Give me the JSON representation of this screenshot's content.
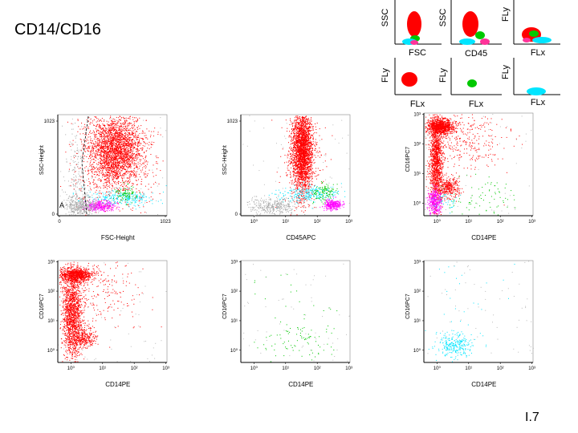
{
  "slide": {
    "title": "CD14/CD16",
    "number": "I.7"
  },
  "thumbnails": {
    "labels": [
      "SSC",
      "SSC",
      "FLy",
      "FSC",
      "CD45",
      "FLx",
      "FLy",
      "FLy",
      "FLy",
      "FLx",
      "FLx",
      "FLx"
    ]
  },
  "colors": {
    "lymph_gate": "#ff0000",
    "mono_gate": "#00e5ff",
    "granulocyte_gate": "#00c800",
    "debris_gate": "#ff00ff",
    "ungated": "#aaaaaa"
  },
  "chart_data": [
    {
      "type": "scatter",
      "panel": "p1",
      "xlabel": "FSC-Height",
      "ylabel": "SSC-Height",
      "x_ticks": [
        "0",
        "1023"
      ],
      "y_ticks": [
        "0",
        "1023"
      ],
      "gate_label": "A"
    },
    {
      "type": "scatter",
      "panel": "p2",
      "xlabel": "CD45APC",
      "ylabel": "SSC-Height",
      "x_ticks": [
        "10⁰",
        "10¹",
        "10²",
        "10³"
      ],
      "y_ticks": [
        "0",
        "1023"
      ]
    },
    {
      "type": "scatter",
      "panel": "p3",
      "xlabel": "CD14PE",
      "ylabel": "CD16PC7",
      "x_ticks": [
        "10⁰",
        "10¹",
        "10²",
        "10³"
      ],
      "y_ticks": [
        "10⁰",
        "10¹",
        "10²",
        "10³"
      ]
    },
    {
      "type": "scatter",
      "panel": "p4",
      "xlabel": "CD14PE",
      "ylabel": "CD16PC7",
      "x_ticks": [
        "10⁰",
        "10¹",
        "10²",
        "10³"
      ],
      "y_ticks": [
        "10⁰",
        "10¹",
        "10²",
        "10³"
      ]
    },
    {
      "type": "scatter",
      "panel": "p5",
      "xlabel": "CD14PE",
      "ylabel": "CD16PC7",
      "x_ticks": [
        "10⁰",
        "10¹",
        "10²",
        "10³"
      ],
      "y_ticks": [
        "10⁰",
        "10¹",
        "10²",
        "10³"
      ]
    },
    {
      "type": "scatter",
      "panel": "p6",
      "xlabel": "CD14PE",
      "ylabel": "CD16PC7",
      "x_ticks": [
        "10⁰",
        "10¹",
        "10²",
        "10³"
      ],
      "y_ticks": [
        "10⁰",
        "10¹",
        "10²",
        "10³"
      ]
    }
  ]
}
